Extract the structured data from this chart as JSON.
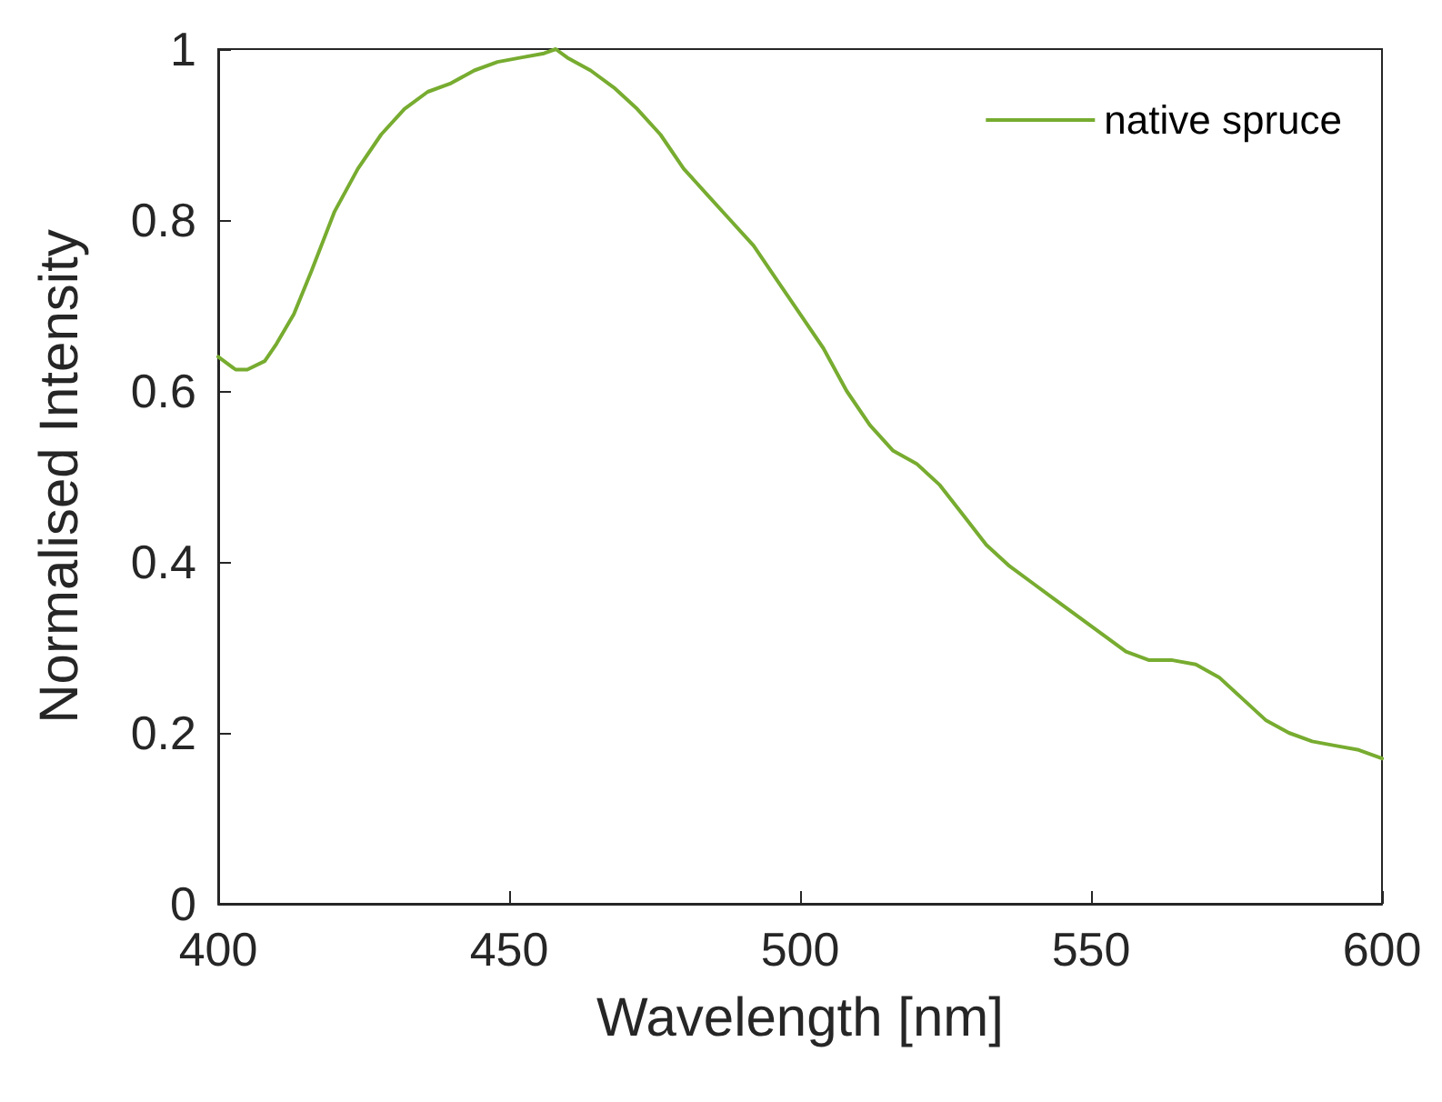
{
  "chart_data": {
    "type": "line",
    "xlabel": "Wavelength [nm]",
    "ylabel": "Normalised Intensity",
    "xlim": [
      400,
      600
    ],
    "xticks": [
      400,
      450,
      500,
      550,
      600
    ],
    "ylim": [
      0,
      1
    ],
    "yticks": [
      0,
      0.2,
      0.4,
      0.6,
      0.8,
      1
    ],
    "grid": false,
    "legend": "top right",
    "marker": "none",
    "line_style": "solid",
    "series": [
      {
        "name": "native spruce",
        "color": "#77ac30",
        "x": [
          400,
          403,
          405,
          408,
          410,
          413,
          416,
          420,
          424,
          428,
          432,
          436,
          440,
          444,
          448,
          452,
          456,
          458,
          460,
          464,
          468,
          472,
          476,
          480,
          484,
          488,
          492,
          496,
          500,
          504,
          508,
          512,
          516,
          520,
          524,
          528,
          532,
          536,
          540,
          544,
          548,
          552,
          556,
          560,
          564,
          568,
          572,
          576,
          580,
          584,
          588,
          592,
          596,
          600
        ],
        "values": [
          0.64,
          0.625,
          0.625,
          0.635,
          0.655,
          0.69,
          0.74,
          0.81,
          0.86,
          0.9,
          0.93,
          0.95,
          0.96,
          0.975,
          0.985,
          0.99,
          0.995,
          1.0,
          0.99,
          0.975,
          0.955,
          0.93,
          0.9,
          0.86,
          0.83,
          0.8,
          0.77,
          0.73,
          0.69,
          0.65,
          0.6,
          0.56,
          0.53,
          0.515,
          0.49,
          0.455,
          0.42,
          0.395,
          0.375,
          0.355,
          0.335,
          0.315,
          0.295,
          0.285,
          0.285,
          0.28,
          0.265,
          0.24,
          0.215,
          0.2,
          0.19,
          0.185,
          0.18,
          0.17
        ]
      }
    ]
  }
}
